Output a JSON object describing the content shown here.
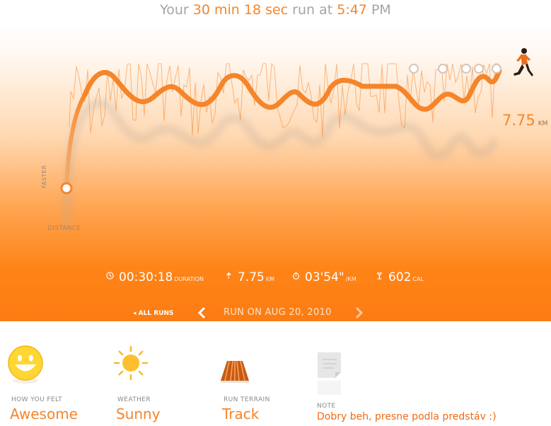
{
  "header": {
    "prefix": "Your",
    "duration": "30 min 18 sec",
    "middle": "run at",
    "time": "5:47",
    "ampm": "PM"
  },
  "chart": {
    "axis_pace_label": "FASTER",
    "axis_distance_label": "DISTANCE",
    "total_distance": "7.75",
    "total_distance_unit": "KM",
    "colors": {
      "pace_line": "#f5852a",
      "marker": "#ffffff",
      "runner": "#e9701f"
    }
  },
  "stats": {
    "duration": {
      "value": "00:30:18",
      "unit": "DURATION",
      "icon": "clock-icon"
    },
    "distance": {
      "value": "7.75",
      "unit": "KM",
      "icon": "pin-icon"
    },
    "pace": {
      "value": "03'54\"",
      "unit": "/KM",
      "icon": "stopwatch-icon"
    },
    "calories": {
      "value": "602",
      "unit": "CAL",
      "icon": "flame-icon"
    }
  },
  "nav": {
    "all_runs": "◂ ALL RUNS",
    "run_date": "RUN ON AUG 20, 2010"
  },
  "details": {
    "felt": {
      "label": "HOW YOU FELT",
      "value": "Awesome",
      "icon": "smiley-icon"
    },
    "weather": {
      "label": "WEATHER",
      "value": "Sunny",
      "icon": "sun-icon"
    },
    "terrain": {
      "label": "RUN TERRAIN",
      "value": "Track",
      "icon": "track-icon"
    },
    "note": {
      "label": "NOTE",
      "value": "Dobry beh, presne podla predstáv :)",
      "icon": "note-icon"
    }
  }
}
